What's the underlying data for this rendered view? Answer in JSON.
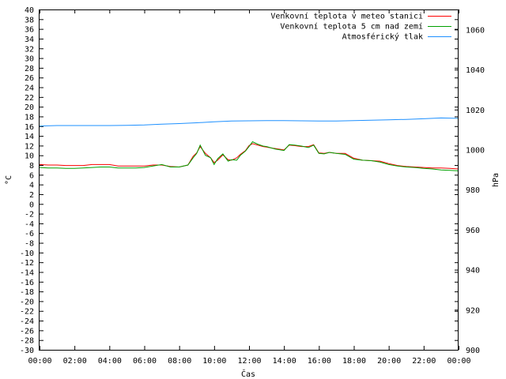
{
  "chart_data": {
    "type": "line",
    "title": "",
    "xlabel": "Čas",
    "ylabel": "°C",
    "y2label": "hPa",
    "xlim": [
      0,
      24
    ],
    "ylim": [
      -30,
      40
    ],
    "y2lim": [
      900,
      1070
    ],
    "x_ticks": [
      "00:00",
      "02:00",
      "04:00",
      "06:00",
      "08:00",
      "10:00",
      "12:00",
      "14:00",
      "16:00",
      "18:00",
      "20:00",
      "22:00",
      "00:00"
    ],
    "y_ticks": [
      40,
      38,
      36,
      34,
      32,
      30,
      28,
      26,
      24,
      22,
      20,
      18,
      16,
      14,
      12,
      10,
      8,
      6,
      4,
      2,
      0,
      -2,
      -4,
      -6,
      -8,
      -10,
      -12,
      -14,
      -16,
      -18,
      -20,
      -22,
      -24,
      -26,
      -28,
      -30
    ],
    "y2_ticks": [
      1060,
      1040,
      1020,
      1000,
      980,
      960,
      940,
      920,
      900
    ],
    "grid": false,
    "legend_position": "top-right",
    "series": [
      {
        "name": "Venkovní teplota v meteo stanici",
        "color": "#ff0000",
        "axis": "left",
        "x": [
          0,
          0.5,
          1,
          1.5,
          2,
          2.5,
          3,
          3.5,
          4,
          4.5,
          5,
          5.5,
          6,
          6.5,
          7,
          7.5,
          8,
          8.5,
          8.8,
          9,
          9.2,
          9.5,
          9.8,
          10,
          10.2,
          10.5,
          10.8,
          11,
          11.3,
          11.5,
          11.8,
          12,
          12.2,
          12.5,
          12.8,
          13,
          13.3,
          13.5,
          14,
          14.3,
          14.6,
          15,
          15.4,
          15.7,
          16,
          16.3,
          16.6,
          17,
          17.5,
          18,
          18.5,
          19,
          19.5,
          20,
          20.5,
          21,
          21.5,
          22,
          22.5,
          23,
          23.5,
          24
        ],
        "y": [
          8.1,
          8.0,
          8.0,
          7.9,
          7.9,
          7.9,
          8.1,
          8.1,
          8.1,
          7.8,
          7.8,
          7.8,
          7.8,
          8.0,
          8.0,
          7.7,
          7.6,
          8.0,
          9.8,
          10.5,
          11.8,
          10.4,
          9.5,
          8.5,
          9.0,
          10.1,
          9.1,
          9.0,
          9.5,
          10.2,
          11.0,
          12.0,
          12.4,
          12.1,
          11.8,
          11.7,
          11.5,
          11.4,
          11.1,
          12.1,
          12.0,
          11.8,
          11.8,
          12.2,
          10.5,
          10.4,
          10.6,
          10.4,
          10.4,
          9.4,
          9.0,
          8.9,
          8.8,
          8.3,
          7.9,
          7.7,
          7.6,
          7.5,
          7.4,
          7.4,
          7.3,
          7.2
        ]
      },
      {
        "name": "Venkovní teplota 5 cm nad zemí",
        "color": "#00a000",
        "axis": "left",
        "x": [
          0,
          0.5,
          1,
          1.5,
          2,
          2.5,
          3,
          3.5,
          4,
          4.5,
          5,
          5.5,
          6,
          6.5,
          7,
          7.5,
          8,
          8.5,
          8.8,
          9,
          9.2,
          9.5,
          9.8,
          10,
          10.2,
          10.5,
          10.8,
          11,
          11.3,
          11.5,
          11.8,
          12,
          12.2,
          12.5,
          12.8,
          13,
          13.3,
          13.5,
          14,
          14.3,
          14.6,
          15,
          15.4,
          15.7,
          16,
          16.3,
          16.6,
          17,
          17.5,
          18,
          18.5,
          19,
          19.5,
          20,
          20.5,
          21,
          21.5,
          22,
          22.5,
          23,
          23.5,
          24
        ],
        "y": [
          7.5,
          7.4,
          7.4,
          7.3,
          7.3,
          7.4,
          7.5,
          7.6,
          7.6,
          7.4,
          7.4,
          7.4,
          7.5,
          7.8,
          8.1,
          7.6,
          7.6,
          8.0,
          9.5,
          10.4,
          12.1,
          10.0,
          9.5,
          8.1,
          9.3,
          10.3,
          8.8,
          9.1,
          9.0,
          10.0,
          10.9,
          11.8,
          12.8,
          12.3,
          11.9,
          11.8,
          11.5,
          11.3,
          11.0,
          12.2,
          12.1,
          11.9,
          11.6,
          12.1,
          10.4,
          10.3,
          10.6,
          10.4,
          10.2,
          9.2,
          9.0,
          8.9,
          8.6,
          8.1,
          7.8,
          7.6,
          7.5,
          7.3,
          7.2,
          7.0,
          6.9,
          6.8
        ]
      },
      {
        "name": "Atmosférický tlak",
        "color": "#1e90ff",
        "axis": "right",
        "x": [
          0,
          1,
          2,
          3,
          4,
          5,
          6,
          7,
          8,
          9,
          10,
          11,
          12,
          13,
          14,
          15,
          16,
          17,
          18,
          19,
          20,
          21,
          22,
          23,
          24
        ],
        "y": [
          1011.8,
          1012.0,
          1012.0,
          1012.0,
          1012.0,
          1012.1,
          1012.3,
          1012.7,
          1013.0,
          1013.4,
          1013.9,
          1014.3,
          1014.4,
          1014.5,
          1014.5,
          1014.4,
          1014.3,
          1014.3,
          1014.5,
          1014.7,
          1014.9,
          1015.1,
          1015.4,
          1015.8,
          1015.6
        ]
      }
    ]
  }
}
